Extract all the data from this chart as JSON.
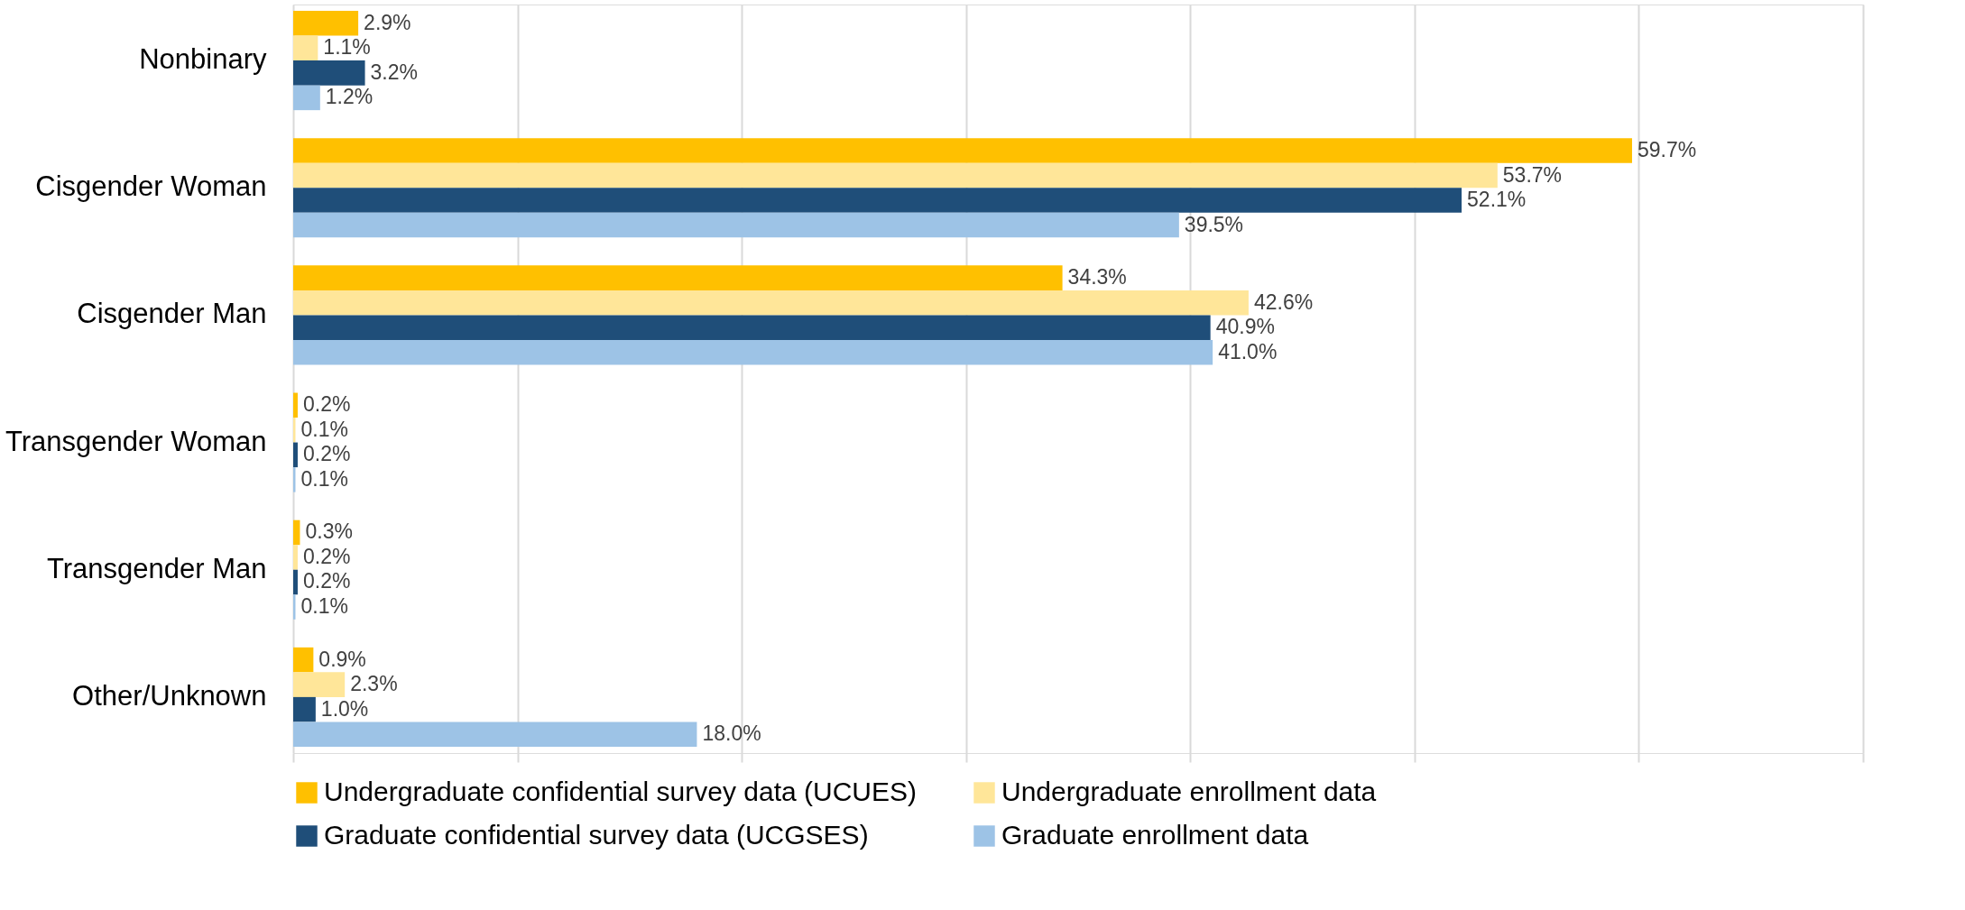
{
  "chart_data": {
    "type": "bar",
    "orientation": "horizontal",
    "categories": [
      "Nonbinary",
      "Cisgender Woman",
      "Cisgender Man",
      "Transgender Woman",
      "Transgender Man",
      "Other/Unknown"
    ],
    "series": [
      {
        "name": "Undergraduate confidential survey data (UCUES)",
        "color": "#ffc000",
        "values": [
          2.9,
          59.7,
          34.3,
          0.2,
          0.3,
          0.9
        ],
        "value_labels": [
          "2.9%",
          "59.7%",
          "34.3%",
          "0.2%",
          "0.3%",
          "0.9%"
        ]
      },
      {
        "name": "Undergraduate enrollment data",
        "color": "#ffe699",
        "values": [
          1.1,
          53.7,
          42.6,
          0.1,
          0.2,
          2.3
        ],
        "value_labels": [
          "1.1%",
          "53.7%",
          "42.6%",
          "0.1%",
          "0.2%",
          "2.3%"
        ]
      },
      {
        "name": "Graduate confidential survey data (UCGSES)",
        "color": "#1f4e79",
        "values": [
          3.2,
          52.1,
          40.9,
          0.2,
          0.2,
          1.0
        ],
        "value_labels": [
          "3.2%",
          "52.1%",
          "40.9%",
          "0.2%",
          "0.2%",
          "1.0%"
        ]
      },
      {
        "name": "Graduate enrollment data",
        "color": "#9dc3e6",
        "values": [
          1.2,
          39.5,
          41.0,
          0.1,
          0.1,
          18.0
        ],
        "value_labels": [
          "1.2%",
          "39.5%",
          "41.0%",
          "0.1%",
          "0.1%",
          "18.0%"
        ]
      }
    ],
    "xlim": [
      0,
      70
    ],
    "xticks": [
      {
        "value": 0,
        "label": null
      },
      {
        "value": 10,
        "label": null
      },
      {
        "value": 20,
        "label": null
      },
      {
        "value": 30,
        "label": null
      },
      {
        "value": 40,
        "label": null
      },
      {
        "value": 50,
        "label": null
      },
      {
        "value": 60,
        "label": null
      },
      {
        "value": 70,
        "label": null
      }
    ],
    "tick_labels": "y",
    "grid": "x",
    "legend": "bottom"
  }
}
